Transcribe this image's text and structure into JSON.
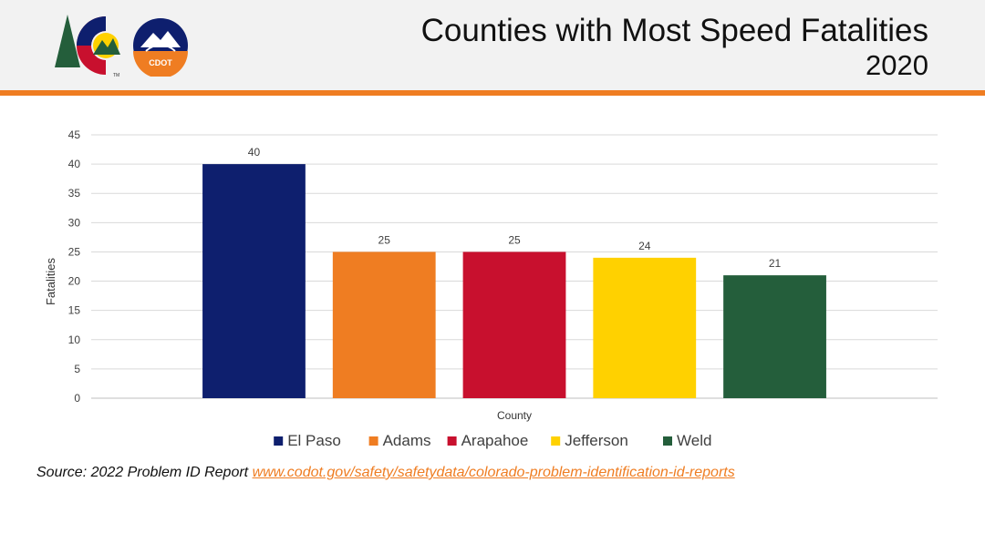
{
  "header": {
    "title_line1": "Counties with Most Speed Fatalities",
    "title_line2": "2020",
    "logo_icon": "colorado-cdot-logo-icon",
    "logo_text": "CDOT",
    "logo_tm": "TM"
  },
  "colors": {
    "accent": "#ef7d22",
    "header_bg": "#f2f2f2"
  },
  "chart_data": {
    "type": "bar",
    "categories": [
      "El Paso",
      "Adams",
      "Arapahoe",
      "Jefferson",
      "Weld"
    ],
    "values": [
      40,
      25,
      25,
      24,
      21
    ],
    "colors": [
      "#0e1f6e",
      "#ef7d22",
      "#c8102e",
      "#ffd100",
      "#245e3b"
    ],
    "xlabel": "County",
    "ylabel": "Fatalities",
    "ylim": [
      0,
      45
    ],
    "yticks": [
      0,
      5,
      10,
      15,
      20,
      25,
      30,
      35,
      40,
      45
    ],
    "grid": true,
    "legend": "bottom",
    "data_labels": true
  },
  "source": {
    "prefix": "Source: 2022 Problem ID Report ",
    "link_text": "www.codot.gov/safety/safetydata/colorado-problem-identification-id-reports"
  }
}
